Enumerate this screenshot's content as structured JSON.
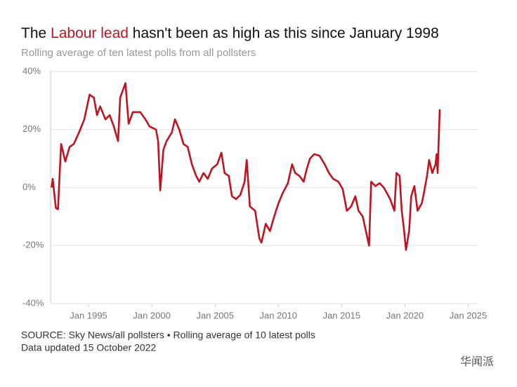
{
  "chart_data": {
    "type": "line",
    "title_parts": [
      "The ",
      "Labour lead",
      " hasn't been as high as this since January 1998"
    ],
    "title_highlight_color": "#c1121f",
    "subtitle": "Rolling average of ten latest polls from all pollsters",
    "source": "SOURCE: Sky News/all pollsters • Rolling average of 10 latest polls",
    "updated": "Data updated 15 October 2022",
    "watermark": "华闻派",
    "grid": true,
    "xlim": [
      "1992-01",
      "2025-10"
    ],
    "xticks": [
      {
        "value": "1995-01",
        "label": "Jan 1995"
      },
      {
        "value": "2000-01",
        "label": "Jan 2000"
      },
      {
        "value": "2005-01",
        "label": "Jan 2005"
      },
      {
        "value": "2010-01",
        "label": "Jan 2010"
      },
      {
        "value": "2015-01",
        "label": "Jan 2015"
      },
      {
        "value": "2020-01",
        "label": "Jan 2020"
      },
      {
        "value": "2025-01",
        "label": "Jan 2025"
      }
    ],
    "ylim": [
      -40,
      40
    ],
    "yticks": [
      {
        "value": -40,
        "label": "-40%"
      },
      {
        "value": -20,
        "label": "-20%"
      },
      {
        "value": 0,
        "label": "0%"
      },
      {
        "value": 20,
        "label": "20%"
      },
      {
        "value": 40,
        "label": "40%"
      }
    ],
    "x": [
      "1992-02",
      "1992-03",
      "1992-06",
      "1992-08",
      "1992-11",
      "1993-03",
      "1993-07",
      "1993-11",
      "1994-04",
      "1994-09",
      "1995-02",
      "1995-06",
      "1995-09",
      "1995-12",
      "1996-05",
      "1996-09",
      "1997-01",
      "1997-05",
      "1997-07",
      "1997-12",
      "1998-03",
      "1998-07",
      "1999-02",
      "1999-07",
      "1999-11",
      "2000-05",
      "2000-07",
      "2000-09",
      "2000-12",
      "2001-03",
      "2001-08",
      "2001-11",
      "2002-03",
      "2002-07",
      "2002-11",
      "2003-03",
      "2003-07",
      "2003-10",
      "2004-02",
      "2004-06",
      "2004-10",
      "2005-03",
      "2005-07",
      "2005-10",
      "2006-02",
      "2006-05",
      "2006-09",
      "2007-01",
      "2007-05",
      "2007-07",
      "2007-10",
      "2008-03",
      "2008-07",
      "2008-09",
      "2009-01",
      "2009-05",
      "2009-09",
      "2010-01",
      "2010-05",
      "2010-10",
      "2011-02",
      "2011-05",
      "2011-09",
      "2012-01",
      "2012-04",
      "2012-07",
      "2012-11",
      "2013-04",
      "2013-09",
      "2014-01",
      "2014-05",
      "2014-10",
      "2015-02",
      "2015-06",
      "2015-10",
      "2016-02",
      "2016-05",
      "2016-09",
      "2016-12",
      "2017-03",
      "2017-05",
      "2017-09",
      "2018-01",
      "2018-05",
      "2018-08",
      "2018-11",
      "2019-03",
      "2019-05",
      "2019-08",
      "2019-10",
      "2019-12",
      "2020-02",
      "2020-05",
      "2020-07",
      "2020-10",
      "2021-01",
      "2021-05",
      "2021-07",
      "2021-10",
      "2021-12",
      "2022-03",
      "2022-06",
      "2022-07",
      "2022-08",
      "2022-10"
    ],
    "series": [
      {
        "name": "Labour lead",
        "color": "#c1121f",
        "values": [
          0,
          3,
          -7,
          -7.5,
          15,
          9,
          14,
          15,
          19,
          23.5,
          32,
          31,
          25,
          28,
          23.5,
          25,
          21,
          16,
          31,
          36,
          22,
          26,
          26,
          23.5,
          21,
          20,
          16,
          -1,
          13,
          16,
          19,
          23.5,
          20,
          15,
          14,
          8,
          4,
          2,
          5,
          3,
          6.5,
          8,
          12,
          5,
          4,
          -3,
          -4,
          -2.5,
          2,
          9.5,
          -6.5,
          -8,
          -17.5,
          -19,
          -12.5,
          -15,
          -10,
          -5.5,
          -2,
          1.5,
          8,
          5,
          4,
          2,
          6.5,
          10,
          11.5,
          11,
          8,
          5,
          3,
          2,
          -0.5,
          -8,
          -6.5,
          -3,
          -8,
          -10,
          -15,
          -20,
          2,
          0.5,
          1.5,
          0,
          -2,
          -4,
          -8,
          5,
          4,
          -8,
          -14,
          -21.5,
          -15,
          -3,
          0.5,
          -8,
          -5.5,
          -2,
          4,
          9.5,
          5,
          8,
          11.5,
          5,
          27
        ]
      }
    ]
  }
}
